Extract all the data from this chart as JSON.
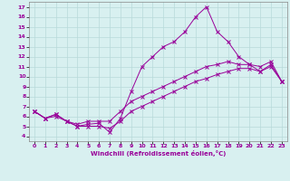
{
  "xlabel": "Windchill (Refroidissement éolien,°C)",
  "background_color": "#d8f0f0",
  "line_color": "#990099",
  "grid_color": "#b8dada",
  "xlim": [
    -0.5,
    23.5
  ],
  "ylim": [
    3.5,
    17.5
  ],
  "xticks": [
    0,
    1,
    2,
    3,
    4,
    5,
    6,
    7,
    8,
    9,
    10,
    11,
    12,
    13,
    14,
    15,
    16,
    17,
    18,
    19,
    20,
    21,
    22,
    23
  ],
  "yticks": [
    4,
    5,
    6,
    7,
    8,
    9,
    10,
    11,
    12,
    13,
    14,
    15,
    16,
    17
  ],
  "line1_x": [
    0,
    1,
    2,
    3,
    4,
    5,
    6,
    7,
    8,
    9,
    10,
    11,
    12,
    13,
    14,
    15,
    16,
    17,
    18,
    19,
    20,
    21,
    22,
    23
  ],
  "line1_y": [
    6.5,
    5.8,
    6.2,
    5.5,
    5.0,
    5.2,
    5.3,
    4.4,
    5.8,
    8.5,
    11.0,
    12.0,
    13.0,
    13.5,
    14.5,
    16.0,
    17.0,
    14.5,
    13.5,
    12.0,
    11.2,
    10.5,
    11.2,
    9.5
  ],
  "line2_x": [
    0,
    1,
    2,
    3,
    4,
    5,
    6,
    7,
    8,
    9,
    10,
    11,
    12,
    13,
    14,
    15,
    16,
    17,
    18,
    19,
    20,
    21,
    22,
    23
  ],
  "line2_y": [
    6.5,
    5.8,
    6.2,
    5.5,
    5.2,
    5.5,
    5.5,
    5.5,
    6.5,
    7.5,
    8.0,
    8.5,
    9.0,
    9.5,
    10.0,
    10.5,
    11.0,
    11.2,
    11.5,
    11.2,
    11.2,
    11.0,
    11.5,
    9.5
  ],
  "line3_x": [
    0,
    1,
    2,
    3,
    4,
    5,
    6,
    7,
    8,
    9,
    10,
    11,
    12,
    13,
    14,
    15,
    16,
    17,
    18,
    19,
    20,
    21,
    22,
    23
  ],
  "line3_y": [
    6.5,
    5.8,
    6.0,
    5.5,
    5.0,
    5.0,
    5.0,
    4.8,
    5.5,
    6.5,
    7.0,
    7.5,
    8.0,
    8.5,
    9.0,
    9.5,
    9.8,
    10.2,
    10.5,
    10.8,
    10.8,
    10.5,
    11.0,
    9.5
  ],
  "tick_fontsize": 4.5,
  "xlabel_fontsize": 5.0,
  "marker_size": 2.5,
  "line_width": 0.7
}
